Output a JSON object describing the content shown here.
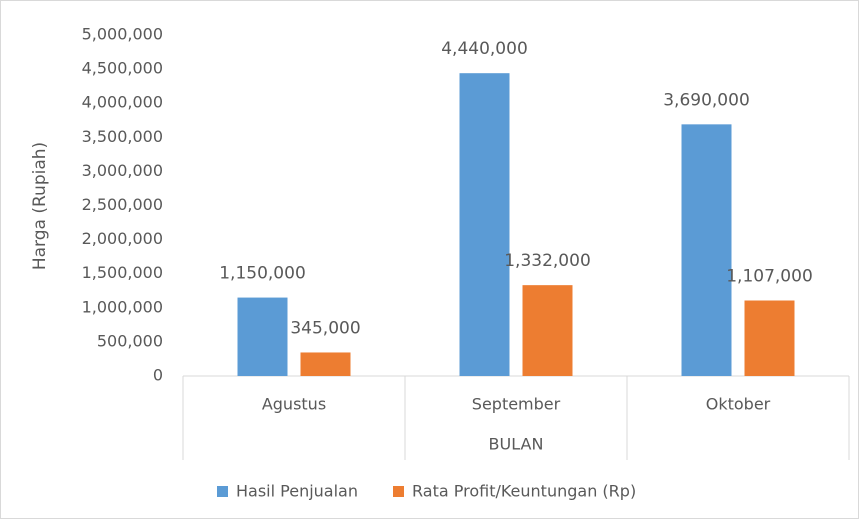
{
  "chart_data": {
    "type": "bar",
    "x_label": "BULAN",
    "y_label": "Harga (Rupiah)",
    "categories": [
      "Agustus",
      "September",
      "Oktober"
    ],
    "series": [
      {
        "name": "Hasil Penjualan",
        "color": "#5b9bd5",
        "values": [
          1150000,
          4440000,
          3690000
        ],
        "value_labels": [
          "1,150,000",
          "4,440,000",
          "3,690,000"
        ]
      },
      {
        "name": "Rata Profit/Keuntungan (Rp)",
        "color": "#ed7d31",
        "values": [
          345000,
          1332000,
          1107000
        ],
        "value_labels": [
          "345,000",
          "1,332,000",
          "1,107,000"
        ]
      }
    ],
    "ylim": [
      0,
      5000000
    ],
    "yticks": [
      0,
      {
        "value": 500000,
        "label": "500,000"
      },
      {
        "value": 1000000,
        "label": "1,000,000"
      },
      {
        "value": 1500000,
        "label": "1,500,000"
      },
      {
        "value": 2000000,
        "label": "2,000,000"
      },
      {
        "value": 2500000,
        "label": "2,500,000"
      },
      {
        "value": 3000000,
        "label": "3,000,000"
      },
      {
        "value": 3500000,
        "label": "3,500,000"
      },
      {
        "value": 4000000,
        "label": "4,000,000"
      },
      {
        "value": 4500000,
        "label": "4,500,000"
      },
      {
        "value": 5000000,
        "label": "5,000,000"
      }
    ],
    "grid": false,
    "legend": "bottom"
  }
}
